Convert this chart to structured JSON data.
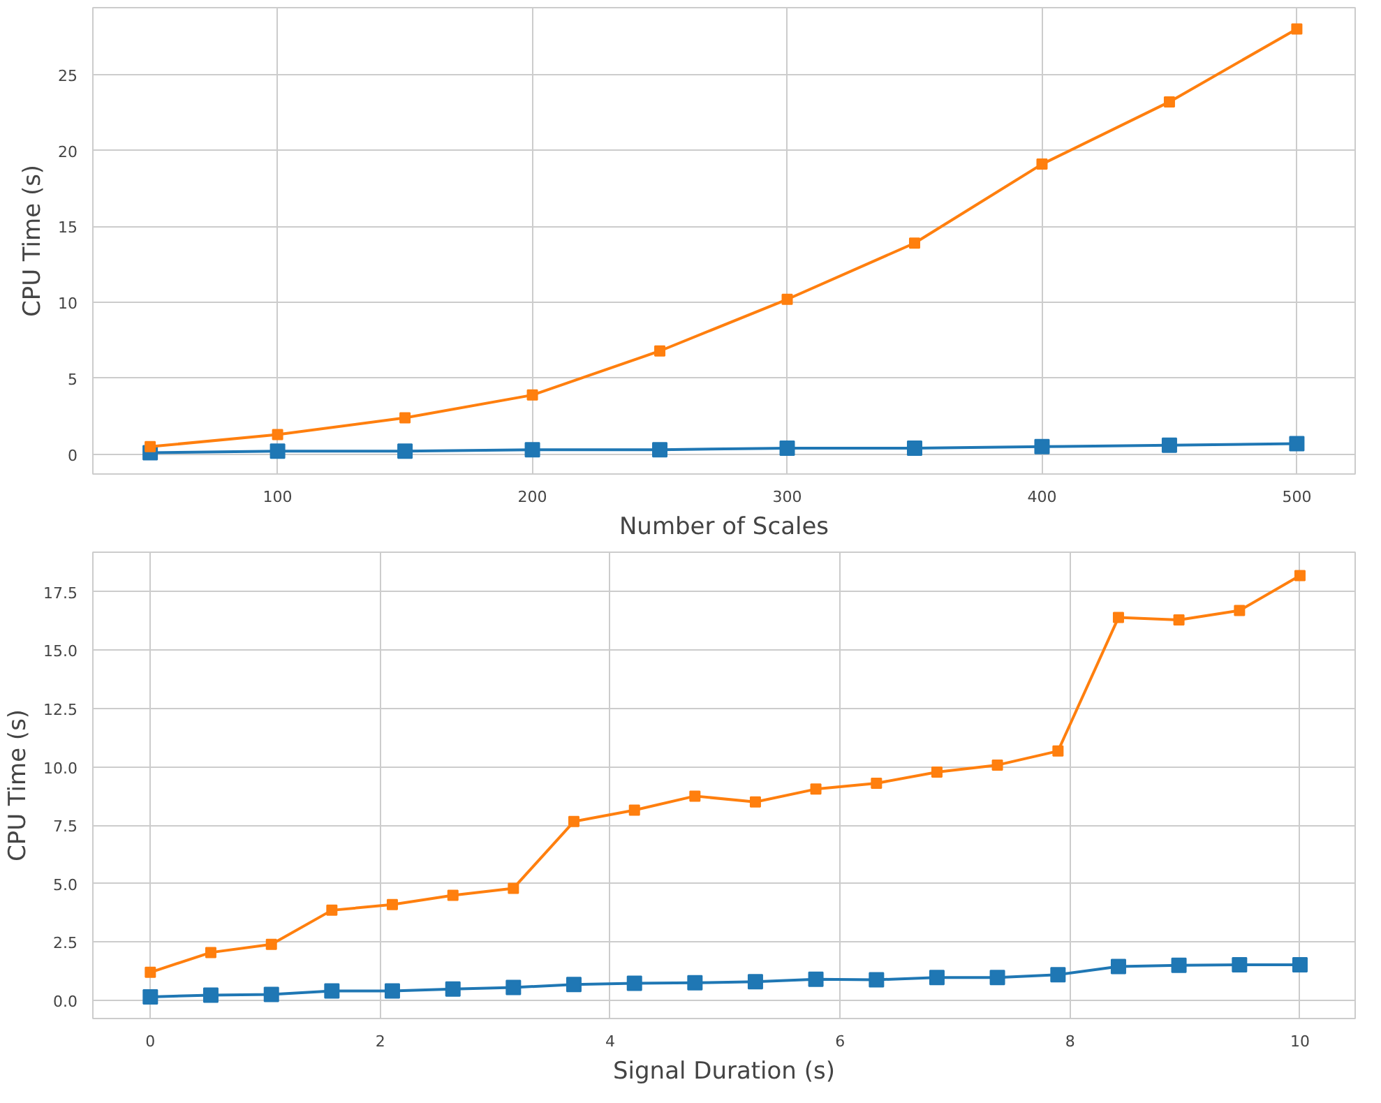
{
  "chart_data": [
    {
      "type": "line",
      "xlabel": "Number of Scales",
      "ylabel": "CPU Time (s)",
      "x": [
        50,
        100,
        150,
        200,
        250,
        300,
        350,
        400,
        450,
        500
      ],
      "xlim": [
        27.5,
        522.9
      ],
      "ylim": [
        -1.3,
        29.4
      ],
      "xticks": [
        100,
        200,
        300,
        400,
        500
      ],
      "yticks": [
        0,
        5,
        10,
        15,
        20,
        25
      ],
      "grid": true,
      "marker": "square",
      "line_style": "solid",
      "series": [
        {
          "color": "#1f77b4",
          "values": [
            0.1,
            0.2,
            0.2,
            0.3,
            0.3,
            0.4,
            0.4,
            0.5,
            0.6,
            0.7
          ]
        },
        {
          "color": "#ff7f0e",
          "values": [
            0.5,
            1.3,
            2.4,
            3.9,
            6.8,
            10.2,
            13.9,
            19.1,
            23.2,
            28.0
          ]
        }
      ]
    },
    {
      "type": "line",
      "xlabel": "Signal Duration (s)",
      "ylabel": "CPU Time (s)",
      "x": [
        0,
        0.526,
        1.053,
        1.579,
        2.105,
        2.632,
        3.158,
        3.684,
        4.211,
        4.737,
        5.263,
        5.789,
        6.316,
        6.842,
        7.368,
        7.895,
        8.421,
        8.947,
        9.474,
        10
      ],
      "xlim": [
        -0.5,
        10.48
      ],
      "ylim": [
        -0.78,
        19.2
      ],
      "xticks": [
        0,
        2,
        4,
        6,
        8,
        10
      ],
      "yticks": [
        {
          "value": 0,
          "label": "0.0"
        },
        {
          "value": 2.5,
          "label": "2.5"
        },
        {
          "value": 5,
          "label": "5.0"
        },
        {
          "value": 7.5,
          "label": "7.5"
        },
        {
          "value": 10,
          "label": "10.0"
        },
        {
          "value": 12.5,
          "label": "12.5"
        },
        {
          "value": 15,
          "label": "15.0"
        },
        {
          "value": 17.5,
          "label": "17.5"
        }
      ],
      "grid": true,
      "marker": "square",
      "line_style": "solid",
      "series": [
        {
          "color": "#1f77b4",
          "values": [
            0.15,
            0.22,
            0.25,
            0.4,
            0.4,
            0.48,
            0.55,
            0.68,
            0.73,
            0.75,
            0.8,
            0.9,
            0.88,
            0.98,
            0.98,
            1.1,
            1.45,
            1.5,
            1.52,
            1.52
          ]
        },
        {
          "color": "#ff7f0e",
          "values": [
            1.2,
            2.05,
            2.4,
            3.86,
            4.1,
            4.5,
            4.8,
            7.66,
            8.15,
            8.75,
            8.5,
            9.05,
            9.3,
            9.78,
            10.08,
            10.68,
            16.4,
            16.3,
            16.7,
            18.2
          ]
        }
      ]
    }
  ]
}
